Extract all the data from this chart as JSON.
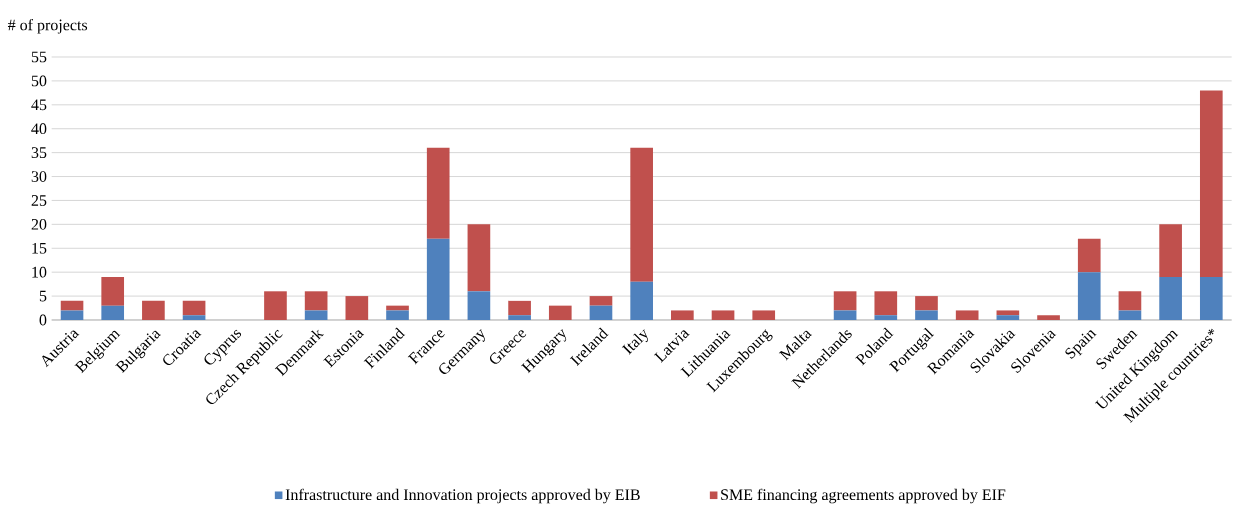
{
  "chart_data": {
    "type": "bar",
    "stacked": true,
    "ylabel": "# of projects",
    "categories": [
      "Austria",
      "Belgium",
      "Bulgaria",
      "Croatia",
      "Cyprus",
      "Czech Republic",
      "Denmark",
      "Estonia",
      "Finland",
      "France",
      "Germany",
      "Greece",
      "Hungary",
      "Ireland",
      "Italy",
      "Latvia",
      "Lithuania",
      "Luxembourg",
      "Malta",
      "Netherlands",
      "Poland",
      "Portugal",
      "Romania",
      "Slovakia",
      "Slovenia",
      "Spain",
      "Sweden",
      "United Kingdom",
      "Multiple countries*"
    ],
    "series": [
      {
        "name": "Infrastructure and Innovation projects approved by EIB",
        "color": "#4f81bd",
        "values": [
          2,
          3,
          0,
          1,
          0,
          0,
          2,
          0,
          2,
          17,
          6,
          1,
          0,
          3,
          8,
          0,
          0,
          0,
          0,
          2,
          1,
          2,
          0,
          1,
          0,
          10,
          2,
          9,
          9
        ]
      },
      {
        "name": "SME financing agreements approved by EIF",
        "color": "#c0504d",
        "values": [
          2,
          6,
          4,
          3,
          0,
          6,
          4,
          5,
          1,
          19,
          14,
          3,
          3,
          2,
          28,
          2,
          2,
          2,
          0,
          4,
          5,
          3,
          2,
          1,
          1,
          7,
          4,
          11,
          39
        ]
      }
    ],
    "ylim": [
      0,
      55
    ],
    "yticks": [
      0,
      5,
      10,
      15,
      20,
      25,
      30,
      35,
      40,
      45,
      50,
      55
    ],
    "grid": "y",
    "legend": "bottom"
  }
}
